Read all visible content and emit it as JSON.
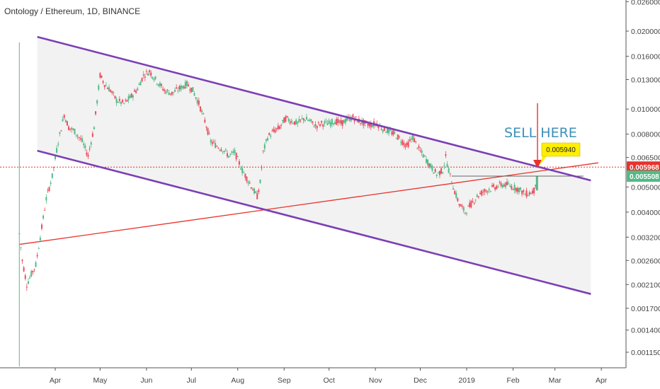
{
  "header": {
    "symbol_title": "Ontology / Ethereum, 1D, BINANCE"
  },
  "chart_data": {
    "type": "candlestick",
    "y_scale": "log",
    "ylim": [
      0.00095,
      0.026
    ],
    "y_ticks": [
      "0.026000",
      "0.020000",
      "0.016000",
      "0.013000",
      "0.010000",
      "0.008000",
      "0.006500",
      "0.005000",
      "0.004000",
      "0.003200",
      "0.002600",
      "0.002100",
      "0.001700",
      "0.001400",
      "0.001150"
    ],
    "x_ticks": [
      "Apr",
      "May",
      "Jun",
      "Jul",
      "Aug",
      "Sep",
      "Oct",
      "Nov",
      "Dec",
      "2019",
      "Feb",
      "Mar",
      "Apr"
    ],
    "price_path": [
      [
        "2018-03-08",
        0.0033
      ],
      [
        "2018-03-10",
        0.0026
      ],
      [
        "2018-03-13",
        0.0021
      ],
      [
        "2018-03-16",
        0.0023
      ],
      [
        "2018-03-19",
        0.0025
      ],
      [
        "2018-03-22",
        0.0032
      ],
      [
        "2018-03-26",
        0.0045
      ],
      [
        "2018-03-30",
        0.0055
      ],
      [
        "2018-04-03",
        0.0075
      ],
      [
        "2018-04-07",
        0.0095
      ],
      [
        "2018-04-10",
        0.0085
      ],
      [
        "2018-04-14",
        0.0082
      ],
      [
        "2018-04-19",
        0.0075
      ],
      [
        "2018-04-23",
        0.0066
      ],
      [
        "2018-04-27",
        0.0085
      ],
      [
        "2018-05-01",
        0.0135
      ],
      [
        "2018-05-04",
        0.0125
      ],
      [
        "2018-05-08",
        0.0118
      ],
      [
        "2018-05-12",
        0.0108
      ],
      [
        "2018-05-17",
        0.0105
      ],
      [
        "2018-05-22",
        0.0112
      ],
      [
        "2018-05-26",
        0.012
      ],
      [
        "2018-05-30",
        0.0135
      ],
      [
        "2018-06-03",
        0.014
      ],
      [
        "2018-06-08",
        0.0128
      ],
      [
        "2018-06-13",
        0.0118
      ],
      [
        "2018-06-18",
        0.0115
      ],
      [
        "2018-06-23",
        0.012
      ],
      [
        "2018-06-28",
        0.0125
      ],
      [
        "2018-07-02",
        0.0118
      ],
      [
        "2018-07-06",
        0.0105
      ],
      [
        "2018-07-10",
        0.009
      ],
      [
        "2018-07-14",
        0.0075
      ],
      [
        "2018-07-18",
        0.0072
      ],
      [
        "2018-07-22",
        0.007
      ],
      [
        "2018-07-26",
        0.0066
      ],
      [
        "2018-07-30",
        0.0068
      ],
      [
        "2018-08-04",
        0.0058
      ],
      [
        "2018-08-08",
        0.0053
      ],
      [
        "2018-08-12",
        0.0048
      ],
      [
        "2018-08-14",
        0.0046
      ],
      [
        "2018-08-16",
        0.0052
      ],
      [
        "2018-08-18",
        0.0068
      ],
      [
        "2018-08-21",
        0.0078
      ],
      [
        "2018-08-25",
        0.0082
      ],
      [
        "2018-08-29",
        0.0085
      ],
      [
        "2018-09-02",
        0.0092
      ],
      [
        "2018-09-06",
        0.009
      ],
      [
        "2018-09-10",
        0.0088
      ],
      [
        "2018-09-14",
        0.0092
      ],
      [
        "2018-09-18",
        0.009
      ],
      [
        "2018-09-22",
        0.0086
      ],
      [
        "2018-09-26",
        0.0088
      ],
      [
        "2018-10-01",
        0.0088
      ],
      [
        "2018-10-05",
        0.009
      ],
      [
        "2018-10-09",
        0.0088
      ],
      [
        "2018-10-13",
        0.0091
      ],
      [
        "2018-10-17",
        0.0093
      ],
      [
        "2018-10-21",
        0.009
      ],
      [
        "2018-10-25",
        0.0088
      ],
      [
        "2018-10-29",
        0.0087
      ],
      [
        "2018-11-02",
        0.0088
      ],
      [
        "2018-11-06",
        0.0084
      ],
      [
        "2018-11-10",
        0.0082
      ],
      [
        "2018-11-14",
        0.008
      ],
      [
        "2018-11-18",
        0.0076
      ],
      [
        "2018-11-22",
        0.0072
      ],
      [
        "2018-11-26",
        0.0078
      ],
      [
        "2018-11-30",
        0.007
      ],
      [
        "2018-12-04",
        0.0065
      ],
      [
        "2018-12-08",
        0.006
      ],
      [
        "2018-12-12",
        0.0056
      ],
      [
        "2018-12-16",
        0.0058
      ],
      [
        "2018-12-18",
        0.0065
      ],
      [
        "2018-12-21",
        0.0055
      ],
      [
        "2018-12-24",
        0.0048
      ],
      [
        "2018-12-27",
        0.0043
      ],
      [
        "2018-12-31",
        0.004
      ],
      [
        "2019-01-04",
        0.0043
      ],
      [
        "2019-01-08",
        0.0046
      ],
      [
        "2019-01-12",
        0.0048
      ],
      [
        "2019-01-16",
        0.0049
      ],
      [
        "2019-01-20",
        0.005
      ],
      [
        "2019-01-24",
        0.0051
      ],
      [
        "2019-01-28",
        0.0051
      ],
      [
        "2019-02-01",
        0.005
      ],
      [
        "2019-02-05",
        0.0049
      ],
      [
        "2019-02-09",
        0.0047
      ],
      [
        "2019-02-13",
        0.00475
      ],
      [
        "2019-02-15",
        0.00485
      ],
      [
        "2019-02-17",
        0.00551
      ]
    ],
    "channel_upper": [
      [
        "2018-03-20",
        0.019
      ],
      [
        "2019-03-25",
        0.0053
      ]
    ],
    "channel_lower": [
      [
        "2018-03-20",
        0.0069
      ],
      [
        "2019-03-25",
        0.00193
      ]
    ],
    "support_trendline": [
      [
        "2018-03-08",
        0.003
      ],
      [
        "2019-03-30",
        0.0062
      ]
    ],
    "horizontal_level": 0.005968,
    "last_price": 0.005508,
    "callout_value": "0.005940",
    "annotation_text": "SELL HERE",
    "colors": {
      "up": "#53b987",
      "down": "#eb4d5c",
      "channel": "#7b3fb5",
      "trend": "#e8322b",
      "level": "#e8322b",
      "price_badge": "#53b987",
      "callout_bg": "#ffee00"
    }
  },
  "price_scale": {
    "level_label": "0.005968",
    "last_label": "0.005508"
  }
}
